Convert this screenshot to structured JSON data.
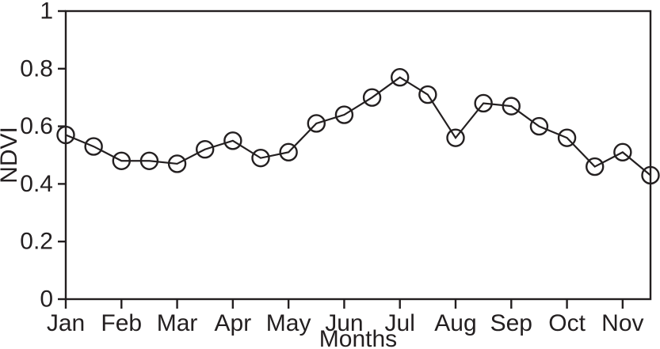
{
  "figure": {
    "background_color": "#ffffff",
    "stroke_color": "#231f20",
    "description": "Seasonal NDVI profile line chart with open-circle markers, semi-monthly values from January to mid-November"
  },
  "chart_data": {
    "type": "line",
    "title": "",
    "xlabel": "Months",
    "ylabel": "NDVI",
    "categories": [
      "Jan",
      "Feb",
      "Mar",
      "Apr",
      "May",
      "Jun",
      "Jul",
      "Aug",
      "Sep",
      "Oct",
      "Nov"
    ],
    "points_per_month": 2,
    "sampling_note": "two samples per month; first sample of each month falls on the month tick, series ends at mid-November on the right axis",
    "series": [
      {
        "name": "NDVI",
        "values": [
          0.57,
          0.53,
          0.48,
          0.48,
          0.47,
          0.52,
          0.55,
          0.49,
          0.51,
          0.61,
          0.64,
          0.7,
          0.77,
          0.71,
          0.56,
          0.68,
          0.67,
          0.6,
          0.56,
          0.46,
          0.51,
          0.43
        ]
      }
    ],
    "ylim": [
      0,
      1
    ],
    "y_tick_values": [
      0,
      0.2,
      0.4,
      0.6,
      0.8,
      1
    ],
    "y_tick_labels": [
      "0",
      "0.2",
      "0.4",
      "0.6",
      "0.8",
      "1"
    ],
    "grid": false,
    "legend": "none",
    "frame": "full box, ticks outside",
    "marker": "open-circle",
    "marker_fill": "none",
    "line_color": "#231f20"
  }
}
